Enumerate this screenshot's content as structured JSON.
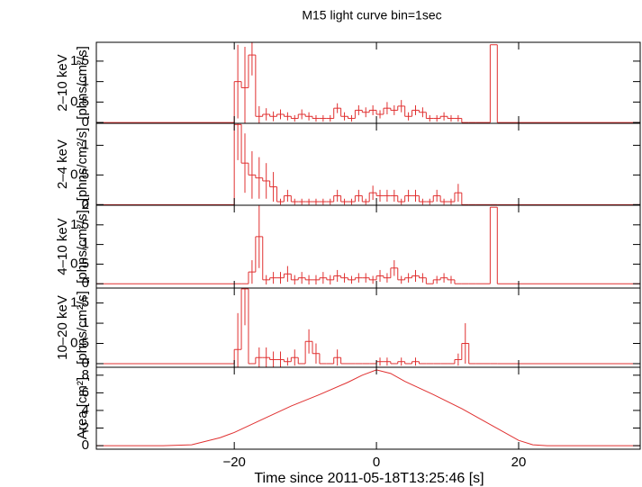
{
  "chart_data": [
    {
      "type": "histogram",
      "title": "M15 light curve bin=1sec",
      "ylabel": [
        "2–10 keV",
        "[phns/cm²/s]"
      ],
      "bins": [
        -20,
        -19,
        -18,
        -17,
        -16,
        -15,
        -14,
        -13,
        -12,
        -11,
        -10,
        -9,
        -8,
        -7,
        -6,
        -5,
        -4,
        -3,
        -2,
        -1,
        0,
        1,
        2,
        3,
        4,
        5,
        6,
        7,
        8,
        9,
        10,
        11,
        12,
        13,
        14,
        15,
        16,
        17
      ],
      "values": [
        1.0,
        0.85,
        1.65,
        0.15,
        0.2,
        0.15,
        0.2,
        0.15,
        0.1,
        0.2,
        0.15,
        0.1,
        0.1,
        0.1,
        0.35,
        0.15,
        0.1,
        0.3,
        0.25,
        0.3,
        0.2,
        0.35,
        0.3,
        0.4,
        0.15,
        0.3,
        0.25,
        0.1,
        0.1,
        0.15,
        0.1,
        0.1,
        0,
        0,
        0,
        0,
        1.9
      ],
      "errors": [
        0.9,
        1.0,
        0.5,
        0.25,
        0.15,
        0.12,
        0.12,
        0.1,
        0.08,
        0.12,
        0.1,
        0.08,
        0.08,
        0.08,
        0.12,
        0.1,
        0.08,
        0.12,
        0.12,
        0.12,
        0.1,
        0.15,
        0.12,
        0.15,
        0.1,
        0.12,
        0.12,
        0.08,
        0.08,
        0.1,
        0.08,
        0.08,
        0,
        0,
        0,
        0,
        0
      ],
      "color": "#e03030",
      "xlim": [
        -39.4,
        37.1
      ],
      "ylim": [
        -0.02,
        1.96
      ],
      "yticks": [
        0,
        0.5,
        1,
        1.5
      ]
    },
    {
      "type": "histogram",
      "ylabel": [
        "2–4 keV",
        "[phns/cm²/s]"
      ],
      "bins": [
        -20,
        -19,
        -18,
        -17,
        -16,
        -15,
        -14,
        -13,
        -12,
        -11,
        -10,
        -9,
        -8,
        -7,
        -6,
        -5,
        -4,
        -3,
        -2,
        -1,
        0,
        1,
        2,
        3,
        4,
        5,
        6,
        7,
        8,
        9,
        10,
        11,
        12,
        13,
        14,
        15,
        16,
        17
      ],
      "values": [
        1.35,
        0.7,
        0.5,
        0.45,
        0.4,
        0.3,
        0.05,
        0.15,
        0.05,
        0.05,
        0.05,
        0.05,
        0.05,
        0.05,
        0.15,
        0.05,
        0.05,
        0.15,
        0.05,
        0.2,
        0.15,
        0.15,
        0.15,
        0.05,
        0.15,
        0.15,
        0.05,
        0.05,
        0.15,
        0.05,
        0.05,
        0.2,
        0,
        0,
        0,
        0,
        0
      ],
      "errors": [
        0.6,
        0.5,
        0.4,
        0.35,
        0.3,
        0.25,
        0.05,
        0.1,
        0.05,
        0.05,
        0.05,
        0.05,
        0.05,
        0.05,
        0.1,
        0.05,
        0.05,
        0.1,
        0.05,
        0.12,
        0.1,
        0.1,
        0.1,
        0.05,
        0.1,
        0.1,
        0.05,
        0.05,
        0.1,
        0.05,
        0.05,
        0.15,
        0,
        0,
        0,
        0,
        0
      ],
      "color": "#e03030",
      "xlim": [
        -39.4,
        37.1
      ],
      "ylim": [
        -0.01,
        1.37
      ],
      "yticks": [
        0,
        0.5,
        1
      ]
    },
    {
      "type": "histogram",
      "ylabel": [
        "4–10 keV",
        "[phns/cm²/s]"
      ],
      "bins": [
        -20,
        -19,
        -18,
        -17,
        -16,
        -15,
        -14,
        -13,
        -12,
        -11,
        -10,
        -9,
        -8,
        -7,
        -6,
        -5,
        -4,
        -3,
        -2,
        -1,
        0,
        1,
        2,
        3,
        4,
        5,
        6,
        7,
        8,
        9,
        10,
        11,
        12,
        13,
        14,
        15,
        16,
        17
      ],
      "values": [
        0,
        0,
        0.3,
        1.2,
        0.1,
        0.15,
        0.15,
        0.25,
        0.1,
        0.15,
        0.1,
        0.1,
        0.15,
        0.1,
        0.2,
        0.15,
        0.1,
        0.15,
        0.15,
        0.1,
        0.2,
        0.15,
        0.4,
        0.1,
        0.15,
        0.2,
        0.15,
        0,
        0.1,
        0.15,
        0.1,
        0,
        0,
        0,
        0,
        0,
        1.95
      ],
      "errors": [
        0,
        0,
        0.3,
        0.8,
        0.12,
        0.15,
        0.15,
        0.2,
        0.12,
        0.15,
        0.12,
        0.12,
        0.15,
        0.12,
        0.15,
        0.12,
        0.1,
        0.12,
        0.12,
        0.1,
        0.15,
        0.12,
        0.2,
        0.1,
        0.12,
        0.15,
        0.12,
        0,
        0.1,
        0.12,
        0.1,
        0,
        0,
        0,
        0,
        0,
        0
      ],
      "color": "#e03030",
      "xlim": [
        -39.4,
        37.1
      ],
      "ylim": [
        -0.11,
        2.0
      ],
      "yticks": [
        0,
        0.5,
        1,
        1.5,
        2
      ]
    },
    {
      "type": "histogram",
      "ylabel": [
        "10–20 keV",
        "[phns/cm²/s]"
      ],
      "bins": [
        -20,
        -19,
        -18,
        -17,
        -16,
        -15,
        -14,
        -13,
        -12,
        -11,
        -10,
        -9,
        -8,
        -7,
        -6,
        -5,
        -4,
        -3,
        -2,
        -1,
        0,
        1,
        2,
        3,
        4,
        5,
        6,
        7,
        8,
        9,
        10,
        11,
        12,
        13,
        14,
        15,
        16,
        17
      ],
      "values": [
        0.35,
        1.85,
        0,
        0.15,
        0.15,
        0.1,
        0.1,
        0.05,
        0.15,
        0,
        0.55,
        0.25,
        0,
        0,
        0.15,
        0,
        0,
        0,
        0,
        0,
        0.05,
        0.05,
        0,
        0.05,
        0,
        0.05,
        0,
        0,
        0,
        0,
        0,
        0.1,
        0.5,
        0,
        0,
        0,
        0
      ],
      "errors": [
        0.9,
        0.9,
        0,
        0.25,
        0.25,
        0.2,
        0.2,
        0.1,
        0.2,
        0,
        0.3,
        0.25,
        0,
        0,
        0.2,
        0,
        0,
        0,
        0,
        0,
        0.1,
        0.1,
        0,
        0.1,
        0,
        0.1,
        0,
        0,
        0,
        0,
        0,
        0.15,
        0.5,
        0,
        0,
        0,
        0
      ],
      "color": "#e03030",
      "xlim": [
        -39.4,
        37.1
      ],
      "ylim": [
        -0.09,
        1.87
      ],
      "yticks": [
        0,
        0.5,
        1,
        1.5
      ]
    },
    {
      "type": "line",
      "ylabel": [
        "Area [cm²]"
      ],
      "xlabel": "Time since 2011-05-18T13:25:46 [s]",
      "x": [
        -39.4,
        -30,
        -26,
        -22,
        -20,
        -16,
        -12,
        -8,
        -4,
        -2,
        0,
        2,
        4,
        8,
        12,
        16,
        20,
        22,
        24,
        37.1
      ],
      "values": [
        0,
        0,
        0.1,
        0.9,
        1.5,
        3,
        4.5,
        5.8,
        7.2,
        8,
        8.6,
        8.2,
        7.3,
        5.8,
        4.2,
        2.4,
        0.6,
        0.1,
        0,
        0
      ],
      "color": "#e03030",
      "xlim": [
        -39.4,
        37.1
      ],
      "ylim": [
        -0.4,
        8.9
      ],
      "yticks": [
        0,
        2,
        4,
        6,
        8
      ],
      "xticks": [
        {
          "value": -20,
          "label": "−20"
        },
        0,
        20
      ]
    }
  ]
}
